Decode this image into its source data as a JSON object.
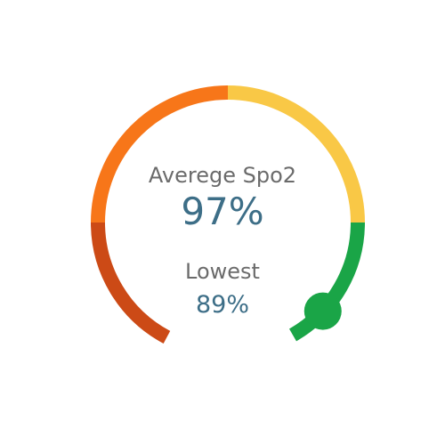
{
  "average": {
    "label": "Averege Spo2",
    "value": "97%"
  },
  "lowest": {
    "label": "Lowest",
    "value": "89%"
  },
  "gauge": {
    "segments": [
      {
        "name": "dark-orange",
        "color": "#cc4a16"
      },
      {
        "name": "orange",
        "color": "#f77619"
      },
      {
        "name": "yellow",
        "color": "#f9c846"
      },
      {
        "name": "green",
        "color": "#1aa547"
      }
    ],
    "knob_color": "#1aa547"
  }
}
